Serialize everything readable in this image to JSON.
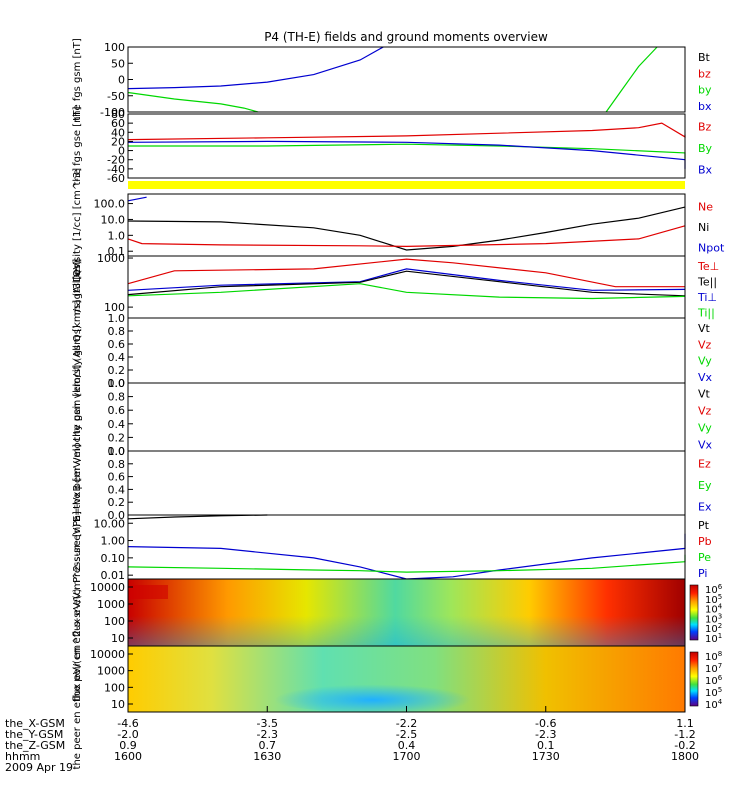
{
  "title": "P4 (TH-E) fields and ground moments overview",
  "date_label": "2009 Apr 19",
  "colors": {
    "black": "#000000",
    "red": "#e00000",
    "green": "#00d800",
    "blue": "#0000d0",
    "yellow": "#ffff00"
  },
  "chart_data": [
    {
      "type": "line",
      "panel": "fgs_gsm",
      "ylabel": "the fgs gsm [nT]",
      "yticks": [
        "100",
        "50",
        "0",
        "-50",
        "-100"
      ],
      "ylim": [
        -100,
        100
      ],
      "legend": [
        {
          "name": "Bt",
          "color": "black"
        },
        {
          "name": "bz",
          "color": "red"
        },
        {
          "name": "by",
          "color": "green"
        },
        {
          "name": "bx",
          "color": "blue"
        }
      ],
      "series": [
        {
          "name": "bx",
          "x": [
            1600,
            1610,
            1620,
            1630,
            1640,
            1650,
            1655
          ],
          "y": [
            -28,
            -25,
            -20,
            -8,
            15,
            60,
            100
          ]
        },
        {
          "name": "by",
          "x": [
            1600,
            1610,
            1620,
            1625,
            1628
          ],
          "y": [
            -40,
            -60,
            -75,
            -88,
            -100
          ]
        },
        {
          "name": "by",
          "x": [
            1743,
            1746,
            1750,
            1754
          ],
          "y": [
            -100,
            -40,
            40,
            100
          ]
        }
      ]
    },
    {
      "type": "line",
      "panel": "fgs_gse",
      "ylabel": "the fgs gse [nT]",
      "yticks": [
        "80",
        "60",
        "40",
        "20",
        "0",
        "-20",
        "-40",
        "-60"
      ],
      "ylim": [
        -60,
        80
      ],
      "legend": [
        {
          "name": "Bz",
          "color": "red"
        },
        {
          "name": "By",
          "color": "green"
        },
        {
          "name": "Bx",
          "color": "blue"
        }
      ],
      "series": [
        {
          "name": "Bz",
          "x": [
            1600,
            1630,
            1700,
            1720,
            1740,
            1750,
            1755,
            1760,
            1800
          ],
          "y": [
            24,
            28,
            32,
            38,
            44,
            50,
            60,
            30,
            35
          ]
        },
        {
          "name": "By",
          "x": [
            1600,
            1630,
            1700,
            1720,
            1740,
            1760,
            1800
          ],
          "y": [
            10,
            10,
            14,
            10,
            4,
            -5,
            -18
          ]
        },
        {
          "name": "Bx",
          "x": [
            1600,
            1630,
            1700,
            1720,
            1740,
            1760,
            1800
          ],
          "y": [
            18,
            20,
            18,
            12,
            0,
            -20,
            -40
          ]
        }
      ]
    },
    {
      "type": "line",
      "panel": "density",
      "ylabel": "Density [1/cc] [cm^-3]",
      "scale": "log",
      "yticks": [
        "100.0",
        "10.0",
        "1.0",
        "0.1"
      ],
      "ylim": [
        0.05,
        400
      ],
      "legend": [
        {
          "name": "Ne",
          "color": "red"
        },
        {
          "name": "Ni",
          "color": "black"
        },
        {
          "name": "Npot",
          "color": "blue"
        }
      ],
      "series": [
        {
          "name": "Ni",
          "x": [
            1600,
            1620,
            1640,
            1650,
            1700,
            1710,
            1720,
            1730,
            1740,
            1750,
            1800
          ],
          "y": [
            8,
            7,
            3,
            1,
            0.12,
            0.2,
            0.5,
            1.5,
            5,
            12,
            60
          ]
        },
        {
          "name": "Ne",
          "x": [
            1600,
            1603,
            1620,
            1650,
            1700,
            1730,
            1750,
            1800
          ],
          "y": [
            0.6,
            0.3,
            0.25,
            0.22,
            0.2,
            0.3,
            0.6,
            4
          ]
        },
        {
          "name": "Npot",
          "x": [
            1600,
            1604
          ],
          "y": [
            150,
            250
          ]
        }
      ]
    },
    {
      "type": "line",
      "panel": "temperature",
      "ylabel": "magt3 [eV]",
      "scale": "log",
      "yticks": [
        "1000",
        "100"
      ],
      "ylim": [
        60,
        1100
      ],
      "legend": [
        {
          "name": "Te⊥",
          "color": "red"
        },
        {
          "name": "Te||",
          "color": "black"
        },
        {
          "name": "Ti⊥",
          "color": "blue"
        },
        {
          "name": "Ti||",
          "color": "green"
        }
      ],
      "series": [
        {
          "name": "Te⊥",
          "x": [
            1600,
            1610,
            1640,
            1700,
            1710,
            1730,
            1745,
            1800
          ],
          "y": [
            300,
            550,
            600,
            950,
            800,
            500,
            260,
            260
          ]
        },
        {
          "name": "Ti⊥",
          "x": [
            1600,
            1620,
            1650,
            1700,
            1720,
            1740,
            1800
          ],
          "y": [
            220,
            280,
            330,
            600,
            350,
            220,
            230
          ]
        },
        {
          "name": "Te||",
          "x": [
            1600,
            1620,
            1650,
            1700,
            1720,
            1740,
            1800
          ],
          "y": [
            180,
            260,
            320,
            540,
            330,
            200,
            170
          ]
        },
        {
          "name": "Ti||",
          "x": [
            1600,
            1620,
            1650,
            1700,
            1720,
            1740,
            1800
          ],
          "y": [
            170,
            200,
            300,
            200,
            160,
            150,
            165
          ]
        }
      ]
    },
    {
      "type": "line",
      "panel": "peir_velocity",
      "ylabel": "the peir velocity gsm [km/s] (All Qs)",
      "yticks": [
        "1.0",
        "0.8",
        "0.6",
        "0.4",
        "0.2",
        "0.0"
      ],
      "ylim": [
        0,
        1
      ],
      "legend": [
        {
          "name": "Vt",
          "color": "black"
        },
        {
          "name": "Vz",
          "color": "red"
        },
        {
          "name": "Vy",
          "color": "green"
        },
        {
          "name": "Vx",
          "color": "blue"
        }
      ],
      "series": []
    },
    {
      "type": "line",
      "panel": "peer_velocity",
      "ylabel": "the peer velocity gsm [km/s] (All Qs)",
      "yticks": [
        "1.0",
        "0.8",
        "0.6",
        "0.4",
        "0.2",
        "0.0"
      ],
      "ylim": [
        0,
        1
      ],
      "legend": [
        {
          "name": "Vt",
          "color": "black"
        },
        {
          "name": "Vz",
          "color": "red"
        },
        {
          "name": "Vy",
          "color": "green"
        },
        {
          "name": "Vx",
          "color": "blue"
        }
      ],
      "series": []
    },
    {
      "type": "line",
      "panel": "efield",
      "ylabel": "E=-VxB [mV/m]",
      "yticks": [
        "1.0",
        "0.8",
        "0.6",
        "0.4",
        "0.2",
        "0.0"
      ],
      "ylim": [
        0,
        1
      ],
      "legend": [
        {
          "name": "Ez",
          "color": "red"
        },
        {
          "name": "Ey",
          "color": "green"
        },
        {
          "name": "Ex",
          "color": "blue"
        }
      ],
      "series": []
    },
    {
      "type": "line",
      "panel": "pressure",
      "ylabel": "Pressure [nPa]",
      "scale": "log",
      "yticks": [
        "10.00",
        "1.00",
        "0.10",
        "0.01"
      ],
      "ylim": [
        0.006,
        30
      ],
      "legend": [
        {
          "name": "Pt",
          "color": "black"
        },
        {
          "name": "Pb",
          "color": "red"
        },
        {
          "name": "Pe",
          "color": "green"
        },
        {
          "name": "Pi",
          "color": "blue"
        }
      ],
      "series": [
        {
          "name": "Pt",
          "x": [
            1600,
            1610,
            1620,
            1630
          ],
          "y": [
            18,
            23,
            27,
            30
          ]
        },
        {
          "name": "Pi",
          "x": [
            1600,
            1620,
            1640,
            1650,
            1700,
            1710,
            1720,
            1740,
            1760,
            1800
          ],
          "y": [
            0.45,
            0.35,
            0.1,
            0.03,
            0.005,
            0.008,
            0.02,
            0.1,
            0.35,
            2.5
          ]
        },
        {
          "name": "Pe",
          "x": [
            1600,
            1620,
            1640,
            1650,
            1700,
            1720,
            1740,
            1760,
            1800
          ],
          "y": [
            0.03,
            0.025,
            0.02,
            0.018,
            0.015,
            0.018,
            0.025,
            0.06,
            0.15
          ]
        }
      ]
    },
    {
      "type": "heatmap",
      "panel": "peir_eflux",
      "ylabel": "the peir en eflux eV/(cm^2-s-sr-eV)",
      "yticks": [
        "10000",
        "1000",
        "100",
        "10"
      ],
      "colorbar_ticks": [
        "10^6",
        "10^5",
        "10^4",
        "10^3",
        "10^2",
        "10^1"
      ]
    },
    {
      "type": "heatmap",
      "panel": "peer_eflux",
      "ylabel": "the peer en eflux eV/(cm^2-s-sr-eV)",
      "yticks": [
        "10000",
        "1000",
        "100",
        "10"
      ],
      "colorbar_ticks": [
        "10^8",
        "10^7",
        "10^6",
        "10^5",
        "10^4"
      ]
    }
  ],
  "x_axis": {
    "row_labels": [
      "the_X-GSM",
      "the_Y-GSM",
      "the_Z-GSM",
      "hhmm"
    ],
    "ticks": [
      {
        "hhmm": "1600",
        "x_gsm": "-4.6",
        "y_gsm": "-2.0",
        "z_gsm": "0.9"
      },
      {
        "hhmm": "1630",
        "x_gsm": "-3.5",
        "y_gsm": "-2.3",
        "z_gsm": "0.7"
      },
      {
        "hhmm": "1700",
        "x_gsm": "-2.2",
        "y_gsm": "-2.5",
        "z_gsm": "0.4"
      },
      {
        "hhmm": "1730",
        "x_gsm": "-0.6",
        "y_gsm": "-2.3",
        "z_gsm": "0.1"
      },
      {
        "hhmm": "1800",
        "x_gsm": "1.1",
        "y_gsm": "-1.2",
        "z_gsm": "-0.2"
      }
    ],
    "xlim": [
      1600,
      1800
    ]
  }
}
